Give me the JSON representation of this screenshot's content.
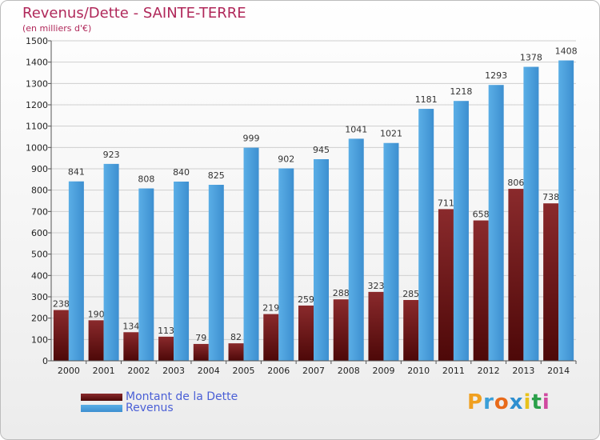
{
  "header": {
    "title": "Revenus/Dette - SAINTE-TERRE",
    "subtitle": "(en milliers d'€)"
  },
  "legend": {
    "items": [
      {
        "label": "Montant de la Dette",
        "color": "#7a1a1f"
      },
      {
        "label": "Revenus",
        "color": "#4aa3e0"
      }
    ]
  },
  "brand": {
    "letters": [
      "P",
      "r",
      "o",
      "x",
      "i",
      "t",
      "i"
    ],
    "colors": [
      "#f0a020",
      "#3a9fd8",
      "#e86a1a",
      "#2e8fd0",
      "#e8c21a",
      "#2aa04a",
      "#d04aa0"
    ]
  },
  "chart_data": {
    "type": "bar",
    "title": "Revenus/Dette - SAINTE-TERRE",
    "subtitle": "(en milliers d'€)",
    "xlabel": "",
    "ylabel": "",
    "ylim": [
      0,
      1500
    ],
    "yticks": [
      0,
      100,
      200,
      300,
      400,
      500,
      600,
      700,
      800,
      900,
      1000,
      1100,
      1200,
      1300,
      1400,
      1500
    ],
    "grid": true,
    "legend_position": "bottom-left",
    "categories": [
      "2000",
      "2001",
      "2002",
      "2003",
      "2004",
      "2005",
      "2006",
      "2007",
      "2008",
      "2009",
      "2010",
      "2011",
      "2012",
      "2013",
      "2014"
    ],
    "series": [
      {
        "name": "Montant de la Dette",
        "color": "#7a1a1f",
        "values": [
          238,
          190,
          134,
          113,
          79,
          82,
          219,
          259,
          288,
          323,
          285,
          711,
          658,
          806,
          738
        ]
      },
      {
        "name": "Revenus",
        "color": "#4aa3e0",
        "values": [
          841,
          923,
          808,
          840,
          825,
          999,
          902,
          945,
          1041,
          1021,
          1181,
          1218,
          1293,
          1378,
          1408
        ]
      }
    ]
  }
}
